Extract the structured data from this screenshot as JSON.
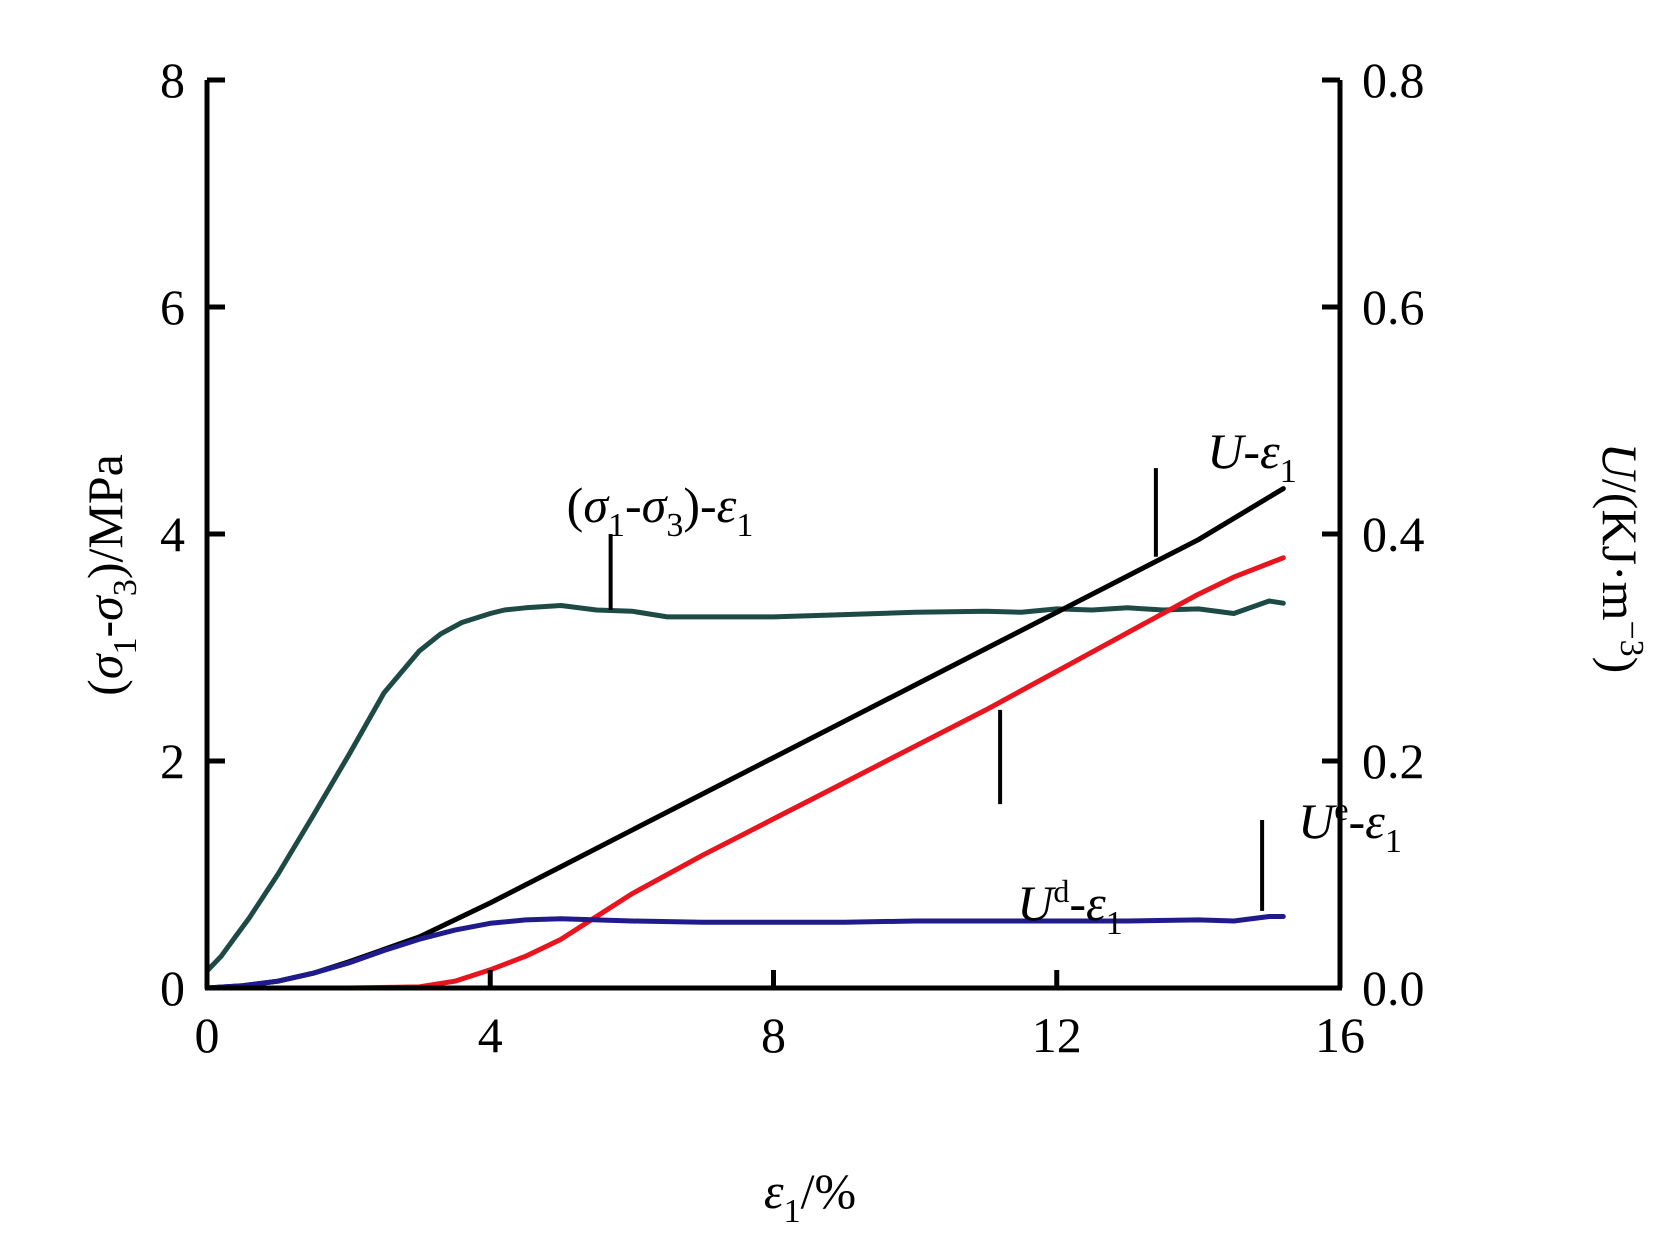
{
  "chart_data": {
    "type": "line",
    "x_axis": {
      "range": [
        0,
        16
      ],
      "ticks": [
        0,
        4,
        8,
        12,
        16
      ],
      "tick_labels": [
        "0",
        "4",
        "8",
        "12",
        "16"
      ],
      "label": {
        "var": "ε",
        "sub": "1",
        "suffix": "/%"
      }
    },
    "y_axis_left": {
      "range": [
        0,
        8
      ],
      "ticks": [
        0,
        2,
        4,
        6,
        8
      ],
      "tick_labels": [
        "0",
        "2",
        "4",
        "6",
        "8"
      ],
      "label": {
        "p1": "(",
        "s1": "σ",
        "sub1": "1",
        "dash": "-",
        "s3": "σ",
        "sub3": "3",
        "tail": ")/MPa"
      }
    },
    "y_axis_right": {
      "range": [
        0,
        0.8
      ],
      "ticks": [
        0,
        0.2,
        0.4,
        0.6,
        0.8
      ],
      "tick_labels": [
        "0.0",
        "0.2",
        "0.4",
        "0.6",
        "0.8"
      ],
      "label": {
        "var": "U",
        "unit": "/(KJ·m",
        "sup": "−3",
        "close": ")"
      }
    },
    "grid": false,
    "series": [
      {
        "key": "stress",
        "axis": "left",
        "color": "#1e4a46",
        "label": {
          "p1": "(",
          "s1": "σ",
          "sub1": "1",
          "dash": "-",
          "s3": "σ",
          "sub3": "3",
          "p2": ")-",
          "var": "ε",
          "sub": "1"
        },
        "x": [
          0,
          0.2,
          0.4,
          0.6,
          1.0,
          1.5,
          2.0,
          2.5,
          3.0,
          3.3,
          3.6,
          4.0,
          4.2,
          4.5,
          5.0,
          5.5,
          6.0,
          6.5,
          7.0,
          8.0,
          9.0,
          10.0,
          11.0,
          11.5,
          12.0,
          12.5,
          13.0,
          13.5,
          14.0,
          14.5,
          15.0,
          15.2
        ],
        "y": [
          0.15,
          0.28,
          0.45,
          0.62,
          1.0,
          1.52,
          2.05,
          2.6,
          2.97,
          3.12,
          3.22,
          3.3,
          3.33,
          3.35,
          3.37,
          3.33,
          3.32,
          3.27,
          3.27,
          3.27,
          3.29,
          3.31,
          3.32,
          3.31,
          3.34,
          3.33,
          3.35,
          3.33,
          3.34,
          3.3,
          3.41,
          3.39
        ]
      },
      {
        "key": "U",
        "axis": "right",
        "color": "#000000",
        "label": {
          "var": "U",
          "dash": "-",
          "var2": "ε",
          "sub": "1"
        },
        "x": [
          0,
          0.5,
          1.0,
          1.5,
          2.0,
          2.5,
          3.0,
          4.0,
          5.0,
          6.0,
          7.0,
          8.0,
          9.0,
          10.0,
          11.0,
          12.0,
          13.0,
          14.0,
          15.2
        ],
        "y": [
          0,
          0.002,
          0.006,
          0.013,
          0.023,
          0.034,
          0.045,
          0.075,
          0.107,
          0.139,
          0.171,
          0.203,
          0.235,
          0.267,
          0.299,
          0.331,
          0.363,
          0.395,
          0.44
        ]
      },
      {
        "key": "Ud",
        "axis": "right",
        "color": "#e8141e",
        "label": {
          "var": "U",
          "sup": "d",
          "dash": "-",
          "var2": "ε",
          "sub": "1"
        },
        "x": [
          0,
          1.0,
          2.0,
          3.0,
          3.5,
          4.0,
          4.5,
          5.0,
          5.5,
          6.0,
          7.0,
          8.0,
          9.0,
          10.0,
          11.0,
          12.0,
          13.0,
          14.0,
          14.5,
          15.2
        ],
        "y": [
          0,
          0,
          0,
          0.001,
          0.006,
          0.016,
          0.028,
          0.043,
          0.063,
          0.083,
          0.117,
          0.149,
          0.181,
          0.213,
          0.245,
          0.279,
          0.313,
          0.347,
          0.362,
          0.379
        ]
      },
      {
        "key": "Ue",
        "axis": "right",
        "color": "#1f1b8c",
        "label": {
          "var": "U",
          "sup": "e",
          "dash": "-",
          "var2": "ε",
          "sub": "1"
        },
        "x": [
          0,
          0.5,
          1.0,
          1.5,
          2.0,
          2.5,
          3.0,
          3.5,
          4.0,
          4.5,
          5.0,
          5.5,
          6.0,
          7.0,
          8.0,
          9.0,
          10.0,
          11.0,
          12.0,
          13.0,
          14.0,
          14.5,
          15.0,
          15.2
        ],
        "y": [
          0,
          0.002,
          0.006,
          0.013,
          0.022,
          0.033,
          0.043,
          0.051,
          0.057,
          0.06,
          0.061,
          0.06,
          0.059,
          0.058,
          0.058,
          0.058,
          0.059,
          0.059,
          0.059,
          0.059,
          0.06,
          0.059,
          0.063,
          0.063
        ]
      }
    ],
    "annotations": [
      {
        "series": "stress",
        "text_pos": [
          5.7,
          4.5
        ],
        "line": [
          [
            5.7,
            4.0
          ],
          [
            5.7,
            3.33
          ]
        ],
        "axis": "left"
      },
      {
        "series": "U",
        "text_pos": [
          13.6,
          4.85
        ],
        "line": [
          [
            13.4,
            4.58
          ],
          [
            13.4,
            3.8
          ]
        ],
        "axis": "left"
      },
      {
        "series": "Ud",
        "text_pos": [
          11.0,
          1.18
        ],
        "line": [
          [
            11.2,
            2.45
          ],
          [
            11.2,
            1.62
          ]
        ],
        "axis": "left"
      },
      {
        "series": "Ue",
        "text_pos": [
          14.6,
          1.8
        ],
        "line": [
          [
            14.9,
            1.48
          ],
          [
            14.9,
            0.68
          ]
        ],
        "axis": "left"
      }
    ]
  }
}
